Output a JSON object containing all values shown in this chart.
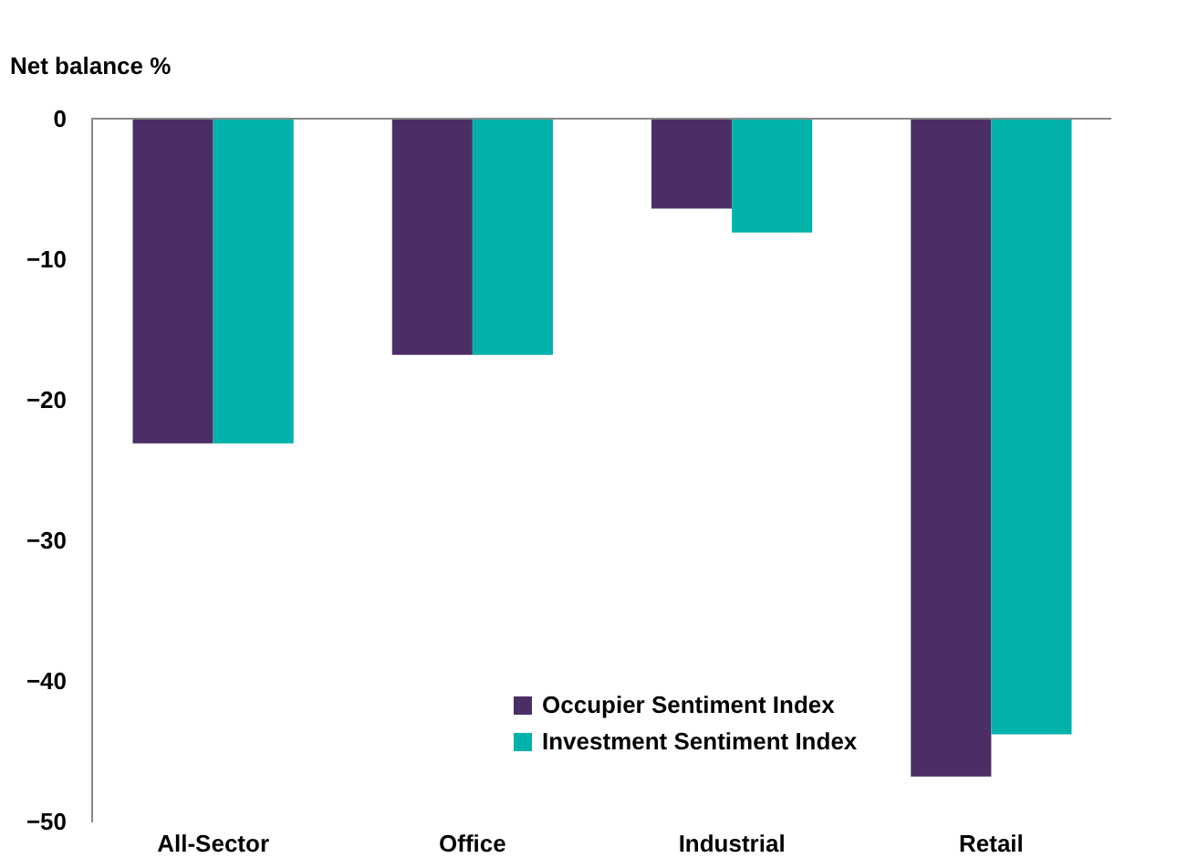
{
  "chart_data": {
    "type": "bar",
    "ylabel": "Net balance %",
    "categories": [
      "All-Sector",
      "Office",
      "Industrial",
      "Retail"
    ],
    "series": [
      {
        "name": "Occupier Sentiment Index",
        "color": "#4b2e66",
        "values": [
          -23.1,
          -16.8,
          -6.4,
          -46.8
        ]
      },
      {
        "name": "Investment Sentiment Index",
        "color": "#00b2a9",
        "values": [
          -23.1,
          -16.8,
          -8.1,
          -43.8
        ]
      }
    ],
    "ylim": [
      -50,
      0
    ],
    "yticks": [
      0,
      -10,
      -20,
      -30,
      -40,
      -50
    ],
    "grid": false,
    "legend": "bottom right"
  }
}
